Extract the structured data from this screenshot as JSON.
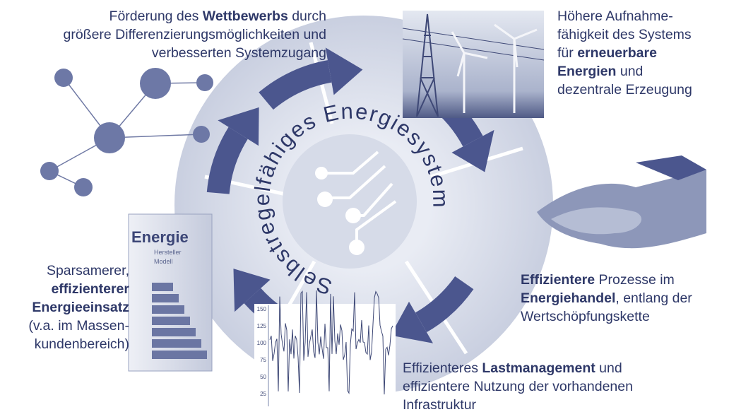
{
  "center_title": "Selbstregelfähiges Energiesystem",
  "callouts": [
    {
      "lines": [
        [
          {
            "text": "Förderung des "
          },
          {
            "bold": "Wettbewerbs"
          },
          {
            "text": " durch"
          }
        ],
        [
          {
            "text": "größere Differenzierungsmöglichkeiten und"
          }
        ],
        [
          {
            "text": "verbesserten Systemzugang"
          }
        ]
      ]
    },
    {
      "lines": [
        [
          {
            "text": "Höhere Aufnahme-"
          }
        ],
        [
          {
            "text": "fähigkeit des Systems"
          }
        ],
        [
          {
            "text": "für "
          },
          {
            "bold": "erneuerbare"
          }
        ],
        [
          {
            "bold": "Energien"
          },
          {
            "text": " und"
          }
        ],
        [
          {
            "text": "dezentrale Erzeugung"
          }
        ]
      ]
    },
    {
      "lines": [
        [
          {
            "bold": "Effizientere"
          },
          {
            "text": " Prozesse im"
          }
        ],
        [
          {
            "bold": "Energiehandel"
          },
          {
            "text": ", entlang der"
          }
        ],
        [
          {
            "text": "Wertschöpfungskette"
          }
        ]
      ]
    },
    {
      "lines": [
        [
          {
            "text": "Effizienteres "
          },
          {
            "bold": "Lastmanagement"
          },
          {
            "text": " und"
          }
        ],
        [
          {
            "text": "effizientere Nutzung der vorhandenen"
          }
        ],
        [
          {
            "text": "Infrastruktur"
          }
        ]
      ]
    },
    {
      "lines": [
        [
          {
            "text": "Sparsamerer,"
          }
        ],
        [
          {
            "bold": "effizienterer"
          }
        ],
        [
          {
            "bold": "Energieeinsatz"
          }
        ],
        [
          {
            "text": "(v.a. im Massen-"
          }
        ],
        [
          {
            "text": "kundenbereich)"
          }
        ]
      ]
    }
  ],
  "energy_label": {
    "title": "Energie",
    "fields": [
      "Hersteller",
      "Modell"
    ]
  },
  "load_chart_ticks": [
    150,
    125,
    100,
    75,
    50,
    25
  ]
}
